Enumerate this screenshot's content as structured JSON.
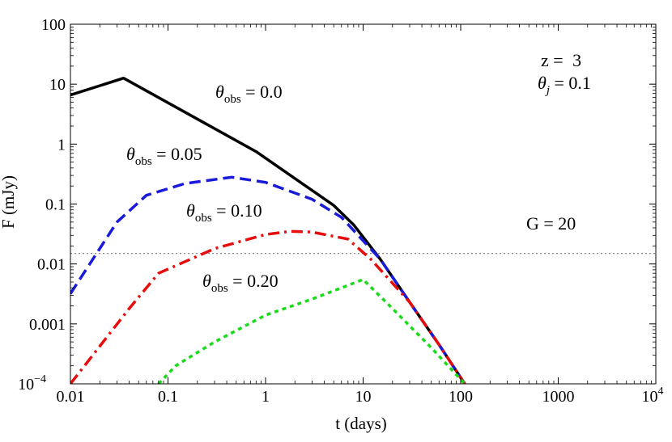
{
  "chart_data": {
    "type": "line",
    "xlabel": "t (days)",
    "ylabel": "F (mJy)",
    "x_scale": "log",
    "y_scale": "log",
    "xlim": [
      0.01,
      10000
    ],
    "ylim": [
      0.0001,
      100
    ],
    "x_ticks": [
      {
        "value": 0.01,
        "label": "0.01"
      },
      {
        "value": 0.1,
        "label": "0.1"
      },
      {
        "value": 1,
        "label": "1"
      },
      {
        "value": 10,
        "label": "10"
      },
      {
        "value": 100,
        "label": "100"
      },
      {
        "value": 1000,
        "label": "1000"
      },
      {
        "value": 10000,
        "label": "10",
        "sup": "4"
      }
    ],
    "y_ticks": [
      {
        "value": 0.0001,
        "label": "10",
        "sup": "−4"
      },
      {
        "value": 0.001,
        "label": "0.001"
      },
      {
        "value": 0.01,
        "label": "0.01"
      },
      {
        "value": 0.1,
        "label": "0.1"
      },
      {
        "value": 1,
        "label": "1"
      },
      {
        "value": 10,
        "label": "10"
      },
      {
        "value": 100,
        "label": "100"
      }
    ],
    "reference_line": {
      "y": 0.015,
      "label": "G = 20",
      "style": "dotted",
      "color": "#8a8a8a"
    },
    "series": [
      {
        "label_main": "θ",
        "label_sub": "obs",
        "label_value": " = 0.0",
        "color": "#000000",
        "dash": "solid",
        "points": [
          [
            0.01,
            6.6
          ],
          [
            0.035,
            12.6
          ],
          [
            0.8,
            0.75
          ],
          [
            5.0,
            0.095
          ],
          [
            8.0,
            0.045
          ],
          [
            15.0,
            0.012
          ],
          [
            30.0,
            0.0023
          ],
          [
            60.0,
            0.00045
          ],
          [
            110.0,
            0.0001
          ]
        ]
      },
      {
        "label_main": "θ",
        "label_sub": "obs",
        "label_value": " = 0.05",
        "color": "#1a1adb",
        "dash": "dashed",
        "points": [
          [
            0.01,
            0.0032
          ],
          [
            0.03,
            0.05
          ],
          [
            0.06,
            0.14
          ],
          [
            0.15,
            0.22
          ],
          [
            0.45,
            0.28
          ],
          [
            1.0,
            0.23
          ],
          [
            3.0,
            0.12
          ],
          [
            6.0,
            0.06
          ],
          [
            15.0,
            0.012
          ],
          [
            30.0,
            0.0023
          ],
          [
            60.0,
            0.00045
          ],
          [
            110.0,
            0.0001
          ]
        ]
      },
      {
        "label_main": "θ",
        "label_sub": "obs",
        "label_value": " = 0.10",
        "color": "#e60d0d",
        "dash": "dashdot",
        "points": [
          [
            0.01,
            0.0001
          ],
          [
            0.04,
            0.0018
          ],
          [
            0.08,
            0.007
          ],
          [
            0.3,
            0.018
          ],
          [
            1.0,
            0.031
          ],
          [
            1.8,
            0.035
          ],
          [
            3.0,
            0.034
          ],
          [
            7.0,
            0.026
          ],
          [
            12.0,
            0.012
          ],
          [
            30.0,
            0.0023
          ],
          [
            60.0,
            0.00045
          ],
          [
            110.0,
            0.0001
          ]
        ]
      },
      {
        "label_main": "θ",
        "label_sub": "obs",
        "label_value": " = 0.20",
        "color": "#1adb1a",
        "dash": "dotted",
        "points": [
          [
            0.08,
            0.0001
          ],
          [
            0.12,
            0.0002
          ],
          [
            0.3,
            0.0005
          ],
          [
            1.0,
            0.0014
          ],
          [
            3.0,
            0.0026
          ],
          [
            6.0,
            0.004
          ],
          [
            10.0,
            0.0055
          ],
          [
            20.0,
            0.0018
          ],
          [
            50.0,
            0.0004
          ],
          [
            110.0,
            0.0001
          ]
        ]
      }
    ],
    "annotations": {
      "redshift": {
        "prefix": "z = ",
        "value": "3"
      },
      "theta_j": {
        "symbol": "θ",
        "sub": "j",
        "value": " = 0.1"
      }
    }
  }
}
